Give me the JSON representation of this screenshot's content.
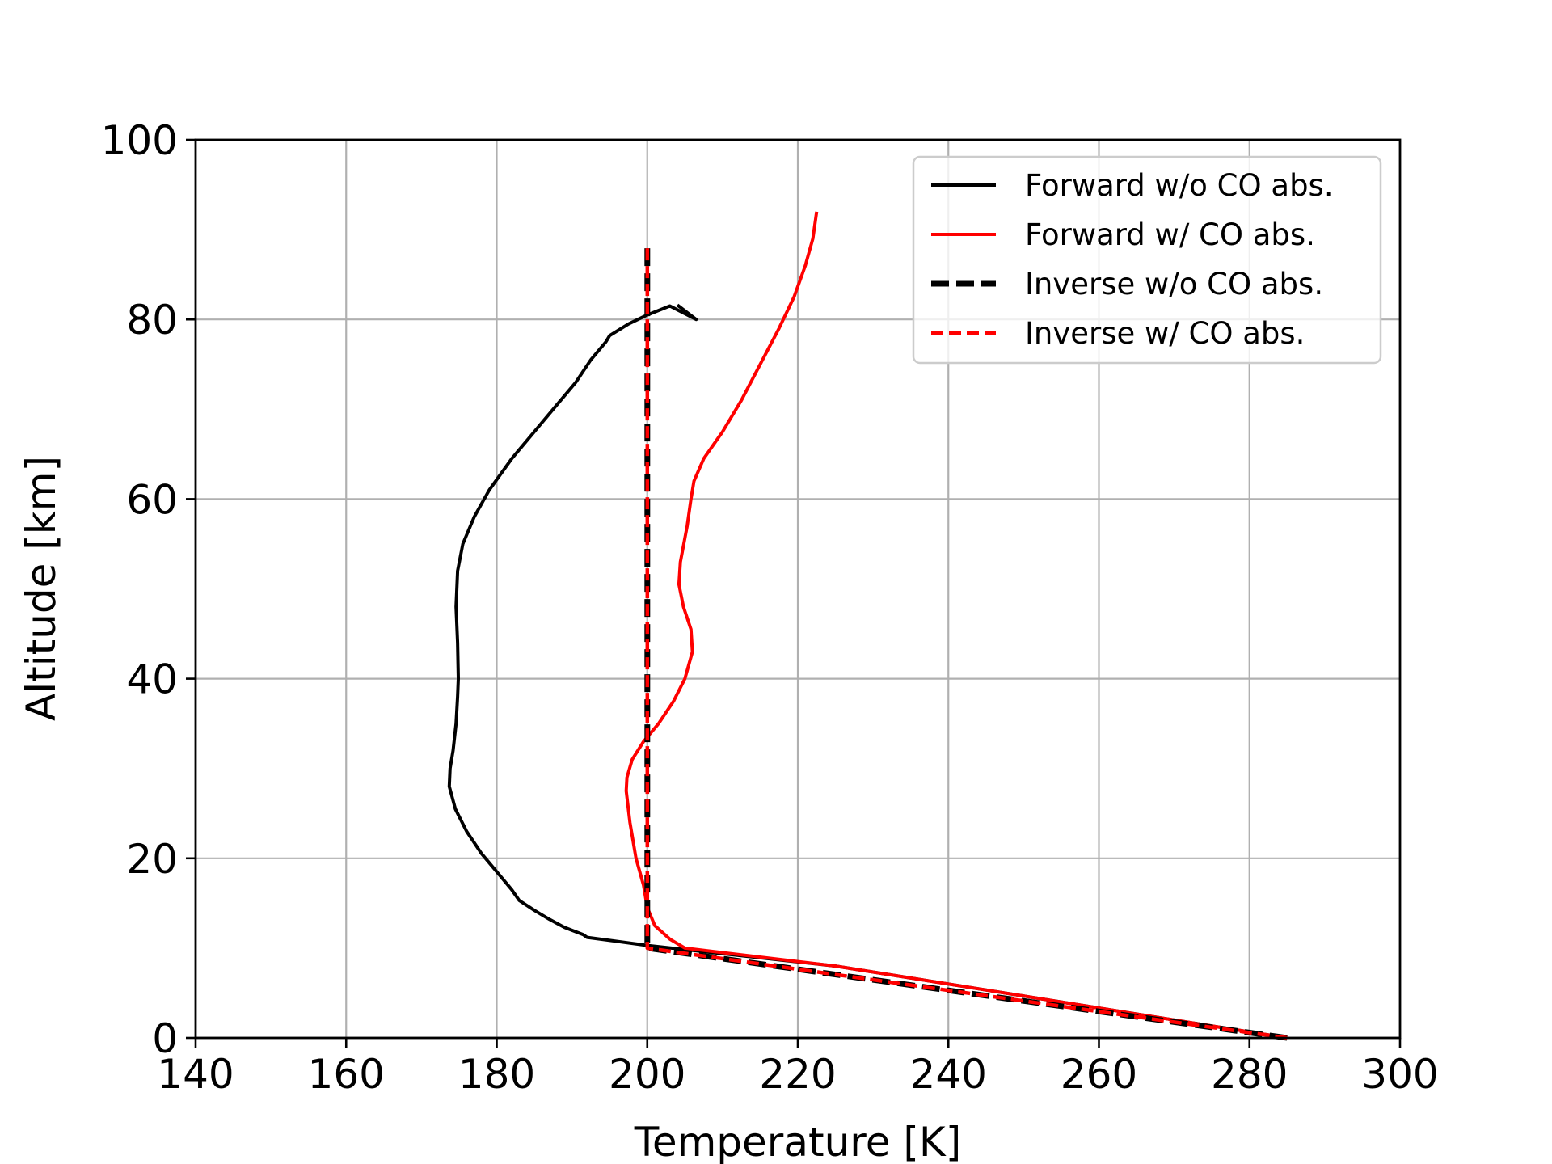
{
  "chart_data": {
    "type": "line",
    "title": "",
    "xlabel": "Temperature [K]",
    "ylabel": "Altitude [km]",
    "xlim": [
      140,
      300
    ],
    "ylim": [
      0,
      100
    ],
    "xticks": [
      140,
      160,
      180,
      200,
      220,
      240,
      260,
      280,
      300
    ],
    "yticks": [
      0,
      20,
      40,
      60,
      80,
      100
    ],
    "xtick_labels": [
      "140",
      "160",
      "180",
      "200",
      "220",
      "240",
      "260",
      "280",
      "300"
    ],
    "ytick_labels": [
      "0",
      "20",
      "40",
      "60",
      "80",
      "100"
    ],
    "grid": true,
    "legend_position": "top-right",
    "series": [
      {
        "name": "Forward w/o CO abs.",
        "color": "#000000",
        "style": "solid",
        "points": [
          [
            285,
            0
          ],
          [
            270,
            2
          ],
          [
            255,
            4
          ],
          [
            240,
            6
          ],
          [
            225,
            8
          ],
          [
            200,
            10.3
          ],
          [
            192,
            11.2
          ],
          [
            191.5,
            11.5
          ],
          [
            189,
            12.3
          ],
          [
            187,
            13.2
          ],
          [
            185,
            14.2
          ],
          [
            183,
            15.3
          ],
          [
            182,
            16.5
          ],
          [
            180.5,
            18
          ],
          [
            178,
            20.5
          ],
          [
            176,
            23
          ],
          [
            174.5,
            25.5
          ],
          [
            173.7,
            28
          ],
          [
            173.8,
            30
          ],
          [
            174.2,
            32
          ],
          [
            174.6,
            35
          ],
          [
            174.8,
            38
          ],
          [
            174.9,
            40
          ],
          [
            174.8,
            44
          ],
          [
            174.6,
            48
          ],
          [
            174.8,
            52
          ],
          [
            175.5,
            55
          ],
          [
            177,
            58
          ],
          [
            179,
            61
          ],
          [
            182,
            64.5
          ],
          [
            185.5,
            68
          ],
          [
            188,
            70.5
          ],
          [
            190.5,
            73
          ],
          [
            192.5,
            75.5
          ],
          [
            194.5,
            77.5
          ],
          [
            195,
            78.2
          ],
          [
            197.5,
            79.5
          ],
          [
            200,
            80.5
          ],
          [
            203,
            81.5
          ],
          [
            206.5,
            80
          ],
          [
            204,
            81.6
          ]
        ]
      },
      {
        "name": "Forward w/ CO abs.",
        "color": "#ff0000",
        "style": "solid",
        "points": [
          [
            285,
            0
          ],
          [
            270,
            2
          ],
          [
            255,
            4
          ],
          [
            240,
            6
          ],
          [
            225,
            8
          ],
          [
            205,
            10
          ],
          [
            203,
            11
          ],
          [
            201,
            12.5
          ],
          [
            200,
            14.5
          ],
          [
            199.5,
            17
          ],
          [
            198.5,
            20
          ],
          [
            197.7,
            24
          ],
          [
            197.2,
            27.5
          ],
          [
            197.3,
            29
          ],
          [
            198,
            31
          ],
          [
            199.5,
            33
          ],
          [
            201.5,
            35
          ],
          [
            203.5,
            37.5
          ],
          [
            205,
            40
          ],
          [
            206,
            43
          ],
          [
            205.8,
            45.5
          ],
          [
            204.8,
            48
          ],
          [
            204.2,
            50.5
          ],
          [
            204.4,
            53
          ],
          [
            205.3,
            57
          ],
          [
            205.8,
            60
          ],
          [
            206.2,
            62
          ],
          [
            207.5,
            64.5
          ],
          [
            210,
            67.5
          ],
          [
            212.5,
            71
          ],
          [
            215,
            75
          ],
          [
            217.5,
            79
          ],
          [
            219.5,
            82.5
          ],
          [
            221,
            86
          ],
          [
            222,
            89
          ],
          [
            222.5,
            92
          ]
        ]
      },
      {
        "name": "Inverse w/o CO abs.",
        "color": "#000000",
        "style": "dashed",
        "points": [
          [
            285,
            0
          ],
          [
            200,
            10
          ],
          [
            200,
            88
          ]
        ]
      },
      {
        "name": "Inverse w/ CO abs.",
        "color": "#ff0000",
        "style": "dashed",
        "points": [
          [
            285,
            0
          ],
          [
            200,
            10
          ],
          [
            200,
            88
          ]
        ]
      }
    ]
  }
}
